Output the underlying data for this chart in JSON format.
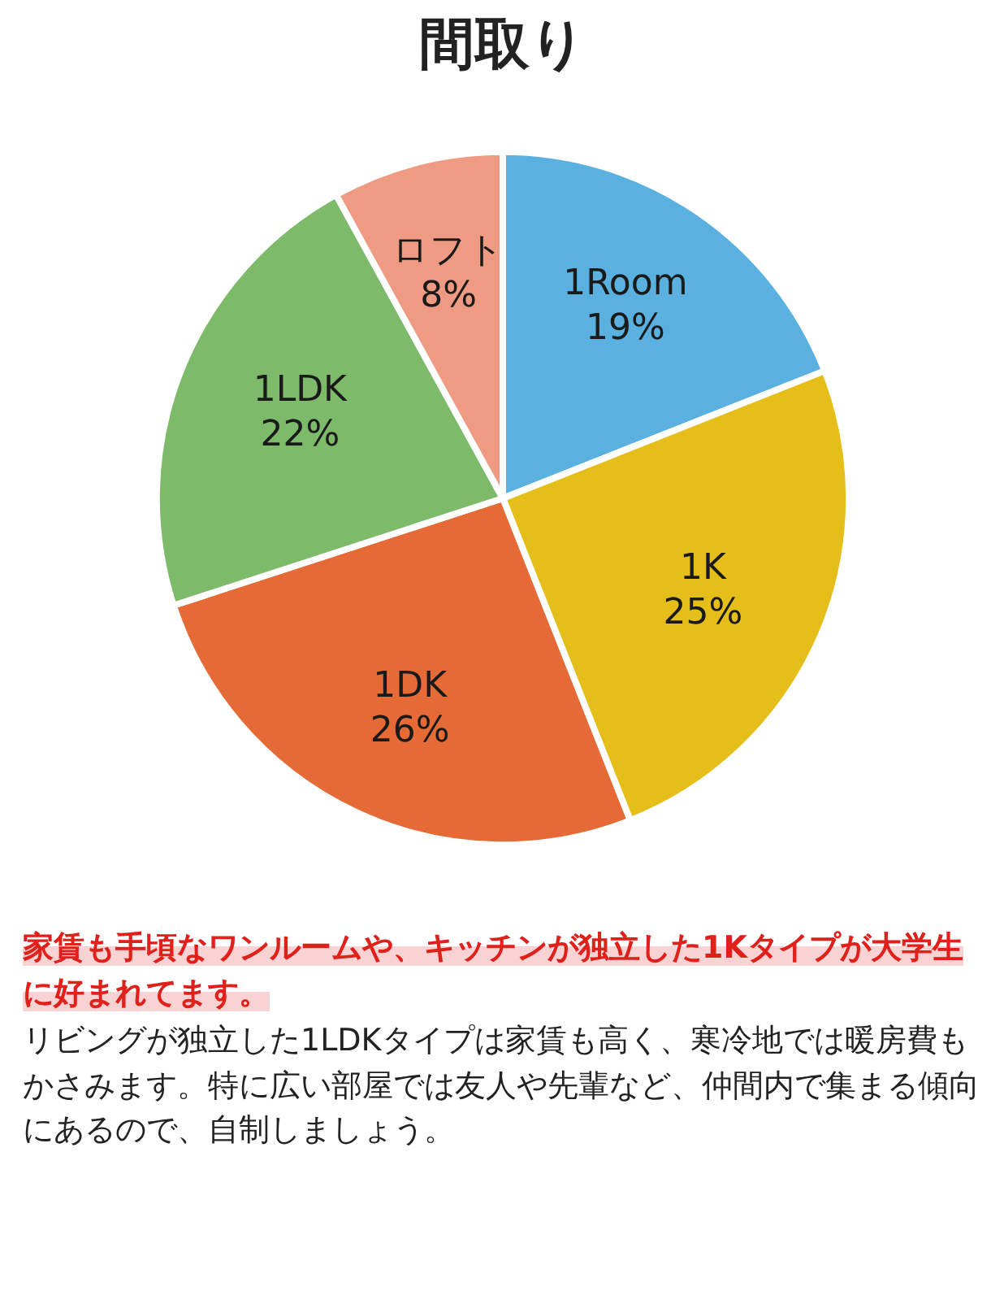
{
  "chart_data": {
    "type": "pie",
    "title": "間取り",
    "categories": [
      "1Room",
      "1K",
      "1DK",
      "1LDK",
      "ロフト"
    ],
    "values": [
      19,
      25,
      26,
      22,
      8
    ],
    "colors": [
      "#5ab0de",
      "#e6be1a",
      "#e66a35",
      "#7dba6a",
      "#ef9a82"
    ],
    "value_labels": [
      "19%",
      "25%",
      "26%",
      "22%",
      "8%"
    ],
    "legend": false,
    "annotations": [
      "家賃も手頃なワンルームや、キッチンが独立した1Kタイプが大学生に好まれてます。",
      "リビングが独立した1LDKタイプは家賃も高く、寒冷地では暖房費もかさみます。特に広い部屋では友人や先輩など、仲間内で集まる傾向にあるので、自制しましょう。"
    ]
  }
}
